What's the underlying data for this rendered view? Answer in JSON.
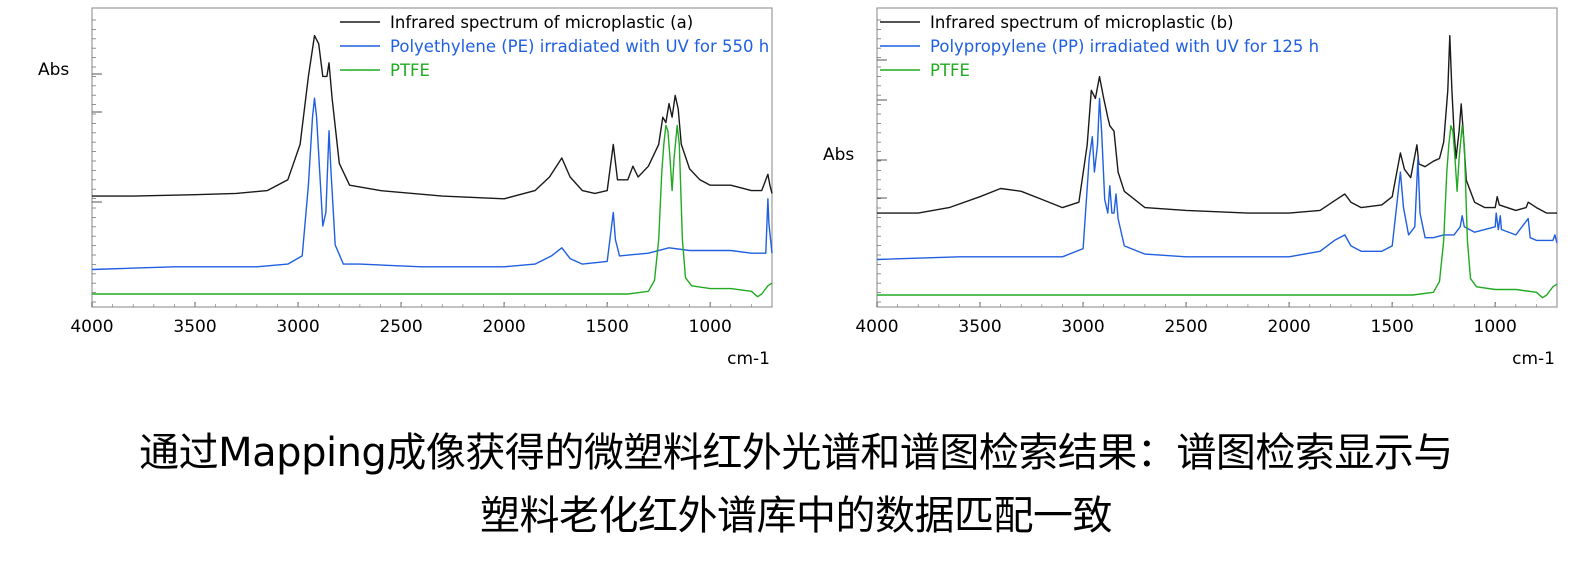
{
  "chart_data": [
    {
      "type": "line",
      "title": "",
      "xlabel": "cm-1",
      "ylabel": "Abs",
      "xlim": [
        4000,
        700
      ],
      "x_ticks": [
        "4000",
        "3500",
        "3000",
        "2500",
        "2000",
        "1500",
        "1000"
      ],
      "x_tick_values": [
        4000,
        3500,
        3000,
        2500,
        2000,
        1500,
        1000
      ],
      "ylim": [
        0,
        1
      ],
      "y_tick_labels_shown": false,
      "grid": false,
      "legend_position": "top-right",
      "series": [
        {
          "name": "Infrared spectrum of microplastic (a)",
          "color": "#1a1a1a",
          "points": [
            [
              4000,
              0.36
            ],
            [
              3800,
              0.36
            ],
            [
              3500,
              0.365
            ],
            [
              3300,
              0.37
            ],
            [
              3150,
              0.38
            ],
            [
              3050,
              0.42
            ],
            [
              2990,
              0.55
            ],
            [
              2950,
              0.8
            ],
            [
              2920,
              0.95
            ],
            [
              2900,
              0.92
            ],
            [
              2880,
              0.8
            ],
            [
              2860,
              0.8
            ],
            [
              2850,
              0.85
            ],
            [
              2835,
              0.72
            ],
            [
              2800,
              0.48
            ],
            [
              2750,
              0.4
            ],
            [
              2600,
              0.38
            ],
            [
              2300,
              0.36
            ],
            [
              2000,
              0.35
            ],
            [
              1850,
              0.38
            ],
            [
              1780,
              0.43
            ],
            [
              1720,
              0.5
            ],
            [
              1680,
              0.43
            ],
            [
              1620,
              0.38
            ],
            [
              1560,
              0.37
            ],
            [
              1500,
              0.38
            ],
            [
              1470,
              0.55
            ],
            [
              1450,
              0.42
            ],
            [
              1400,
              0.42
            ],
            [
              1375,
              0.47
            ],
            [
              1350,
              0.43
            ],
            [
              1300,
              0.47
            ],
            [
              1250,
              0.55
            ],
            [
              1230,
              0.65
            ],
            [
              1215,
              0.63
            ],
            [
              1200,
              0.7
            ],
            [
              1185,
              0.65
            ],
            [
              1170,
              0.73
            ],
            [
              1155,
              0.68
            ],
            [
              1140,
              0.55
            ],
            [
              1100,
              0.46
            ],
            [
              1050,
              0.42
            ],
            [
              1000,
              0.4
            ],
            [
              900,
              0.4
            ],
            [
              800,
              0.38
            ],
            [
              750,
              0.38
            ],
            [
              720,
              0.44
            ],
            [
              710,
              0.4
            ],
            [
              700,
              0.37
            ]
          ]
        },
        {
          "name": "Polyethylene (PE) irradiated with UV for 550 h",
          "color": "#1f5fe0",
          "points": [
            [
              4000,
              0.09
            ],
            [
              3600,
              0.1
            ],
            [
              3200,
              0.1
            ],
            [
              3050,
              0.11
            ],
            [
              2980,
              0.14
            ],
            [
              2950,
              0.4
            ],
            [
              2930,
              0.65
            ],
            [
              2920,
              0.72
            ],
            [
              2910,
              0.65
            ],
            [
              2880,
              0.25
            ],
            [
              2865,
              0.3
            ],
            [
              2850,
              0.6
            ],
            [
              2840,
              0.45
            ],
            [
              2820,
              0.18
            ],
            [
              2780,
              0.11
            ],
            [
              2700,
              0.11
            ],
            [
              2400,
              0.1
            ],
            [
              2000,
              0.1
            ],
            [
              1850,
              0.11
            ],
            [
              1770,
              0.14
            ],
            [
              1720,
              0.17
            ],
            [
              1680,
              0.13
            ],
            [
              1620,
              0.11
            ],
            [
              1500,
              0.12
            ],
            [
              1470,
              0.3
            ],
            [
              1460,
              0.2
            ],
            [
              1440,
              0.14
            ],
            [
              1300,
              0.15
            ],
            [
              1200,
              0.17
            ],
            [
              1100,
              0.16
            ],
            [
              1000,
              0.16
            ],
            [
              900,
              0.16
            ],
            [
              800,
              0.15
            ],
            [
              730,
              0.15
            ],
            [
              720,
              0.35
            ],
            [
              715,
              0.26
            ],
            [
              700,
              0.15
            ]
          ]
        },
        {
          "name": "PTFE",
          "color": "#22aa22",
          "points": [
            [
              4000,
              0.0
            ],
            [
              3000,
              0.0
            ],
            [
              2000,
              0.0
            ],
            [
              1400,
              0.0
            ],
            [
              1300,
              0.01
            ],
            [
              1270,
              0.05
            ],
            [
              1250,
              0.2
            ],
            [
              1235,
              0.45
            ],
            [
              1225,
              0.55
            ],
            [
              1215,
              0.62
            ],
            [
              1205,
              0.6
            ],
            [
              1195,
              0.5
            ],
            [
              1185,
              0.38
            ],
            [
              1175,
              0.5
            ],
            [
              1160,
              0.62
            ],
            [
              1150,
              0.55
            ],
            [
              1135,
              0.2
            ],
            [
              1120,
              0.06
            ],
            [
              1090,
              0.03
            ],
            [
              1000,
              0.02
            ],
            [
              900,
              0.02
            ],
            [
              800,
              0.01
            ],
            [
              770,
              -0.01
            ],
            [
              750,
              0.0
            ],
            [
              720,
              0.03
            ],
            [
              700,
              0.04
            ]
          ]
        }
      ]
    },
    {
      "type": "line",
      "title": "",
      "xlabel": "cm-1",
      "ylabel": "Abs",
      "xlim": [
        4000,
        700
      ],
      "x_ticks": [
        "4000",
        "3500",
        "3000",
        "2500",
        "2000",
        "1500",
        "1000"
      ],
      "x_tick_values": [
        4000,
        3500,
        3000,
        2500,
        2000,
        1500,
        1000
      ],
      "ylim": [
        0,
        1
      ],
      "y_tick_labels_shown": false,
      "grid": false,
      "legend_position": "top-right",
      "series": [
        {
          "name": "Infrared spectrum of microplastic (b)",
          "color": "#1a1a1a",
          "points": [
            [
              4000,
              0.3
            ],
            [
              3800,
              0.3
            ],
            [
              3650,
              0.32
            ],
            [
              3500,
              0.36
            ],
            [
              3400,
              0.39
            ],
            [
              3300,
              0.38
            ],
            [
              3200,
              0.35
            ],
            [
              3100,
              0.32
            ],
            [
              3020,
              0.34
            ],
            [
              2980,
              0.55
            ],
            [
              2960,
              0.75
            ],
            [
              2940,
              0.72
            ],
            [
              2920,
              0.8
            ],
            [
              2900,
              0.72
            ],
            [
              2880,
              0.65
            ],
            [
              2870,
              0.62
            ],
            [
              2850,
              0.6
            ],
            [
              2830,
              0.45
            ],
            [
              2800,
              0.38
            ],
            [
              2700,
              0.32
            ],
            [
              2500,
              0.31
            ],
            [
              2200,
              0.3
            ],
            [
              2000,
              0.3
            ],
            [
              1850,
              0.31
            ],
            [
              1770,
              0.35
            ],
            [
              1730,
              0.37
            ],
            [
              1700,
              0.34
            ],
            [
              1650,
              0.32
            ],
            [
              1550,
              0.33
            ],
            [
              1500,
              0.36
            ],
            [
              1460,
              0.52
            ],
            [
              1440,
              0.46
            ],
            [
              1410,
              0.43
            ],
            [
              1380,
              0.55
            ],
            [
              1370,
              0.48
            ],
            [
              1340,
              0.47
            ],
            [
              1300,
              0.49
            ],
            [
              1270,
              0.5
            ],
            [
              1250,
              0.56
            ],
            [
              1230,
              0.75
            ],
            [
              1220,
              0.95
            ],
            [
              1210,
              0.75
            ],
            [
              1200,
              0.6
            ],
            [
              1190,
              0.5
            ],
            [
              1175,
              0.6
            ],
            [
              1165,
              0.7
            ],
            [
              1155,
              0.6
            ],
            [
              1140,
              0.42
            ],
            [
              1100,
              0.34
            ],
            [
              1050,
              0.32
            ],
            [
              1000,
              0.32
            ],
            [
              990,
              0.36
            ],
            [
              980,
              0.33
            ],
            [
              900,
              0.31
            ],
            [
              850,
              0.32
            ],
            [
              840,
              0.34
            ],
            [
              800,
              0.32
            ],
            [
              750,
              0.3
            ],
            [
              700,
              0.3
            ]
          ]
        },
        {
          "name": "Polypropylene (PP) irradiated with UV for 125 h",
          "color": "#1f5fe0",
          "points": [
            [
              4000,
              0.13
            ],
            [
              3600,
              0.14
            ],
            [
              3300,
              0.14
            ],
            [
              3100,
              0.14
            ],
            [
              3000,
              0.17
            ],
            [
              2970,
              0.5
            ],
            [
              2955,
              0.58
            ],
            [
              2945,
              0.45
            ],
            [
              2930,
              0.55
            ],
            [
              2920,
              0.72
            ],
            [
              2910,
              0.6
            ],
            [
              2895,
              0.35
            ],
            [
              2880,
              0.3
            ],
            [
              2870,
              0.4
            ],
            [
              2860,
              0.3
            ],
            [
              2850,
              0.3
            ],
            [
              2840,
              0.37
            ],
            [
              2830,
              0.28
            ],
            [
              2800,
              0.18
            ],
            [
              2700,
              0.15
            ],
            [
              2500,
              0.14
            ],
            [
              2200,
              0.14
            ],
            [
              2000,
              0.14
            ],
            [
              1850,
              0.16
            ],
            [
              1780,
              0.2
            ],
            [
              1730,
              0.22
            ],
            [
              1700,
              0.18
            ],
            [
              1650,
              0.16
            ],
            [
              1550,
              0.16
            ],
            [
              1500,
              0.18
            ],
            [
              1460,
              0.45
            ],
            [
              1445,
              0.32
            ],
            [
              1420,
              0.22
            ],
            [
              1390,
              0.25
            ],
            [
              1375,
              0.5
            ],
            [
              1365,
              0.3
            ],
            [
              1340,
              0.21
            ],
            [
              1300,
              0.21
            ],
            [
              1250,
              0.22
            ],
            [
              1200,
              0.22
            ],
            [
              1170,
              0.25
            ],
            [
              1160,
              0.29
            ],
            [
              1150,
              0.25
            ],
            [
              1100,
              0.23
            ],
            [
              1000,
              0.25
            ],
            [
              995,
              0.3
            ],
            [
              985,
              0.24
            ],
            [
              975,
              0.29
            ],
            [
              970,
              0.24
            ],
            [
              900,
              0.22
            ],
            [
              840,
              0.28
            ],
            [
              830,
              0.21
            ],
            [
              800,
              0.2
            ],
            [
              720,
              0.2
            ],
            [
              710,
              0.22
            ],
            [
              700,
              0.19
            ]
          ]
        },
        {
          "name": "PTFE",
          "color": "#22aa22",
          "points": [
            [
              4000,
              0.0
            ],
            [
              3000,
              0.0
            ],
            [
              2000,
              0.0
            ],
            [
              1400,
              0.0
            ],
            [
              1300,
              0.01
            ],
            [
              1270,
              0.05
            ],
            [
              1250,
              0.2
            ],
            [
              1235,
              0.45
            ],
            [
              1225,
              0.55
            ],
            [
              1215,
              0.62
            ],
            [
              1205,
              0.6
            ],
            [
              1195,
              0.5
            ],
            [
              1185,
              0.38
            ],
            [
              1175,
              0.5
            ],
            [
              1160,
              0.62
            ],
            [
              1150,
              0.55
            ],
            [
              1135,
              0.2
            ],
            [
              1120,
              0.06
            ],
            [
              1090,
              0.03
            ],
            [
              1000,
              0.02
            ],
            [
              900,
              0.02
            ],
            [
              800,
              0.01
            ],
            [
              770,
              -0.01
            ],
            [
              750,
              0.0
            ],
            [
              720,
              0.03
            ],
            [
              700,
              0.04
            ]
          ]
        }
      ]
    }
  ],
  "caption": {
    "line1": "通过Mapping成像获得的微塑料红外光谱和谱图检索结果：谱图检索显示与",
    "line2": "塑料老化红外谱库中的数据匹配一致"
  }
}
